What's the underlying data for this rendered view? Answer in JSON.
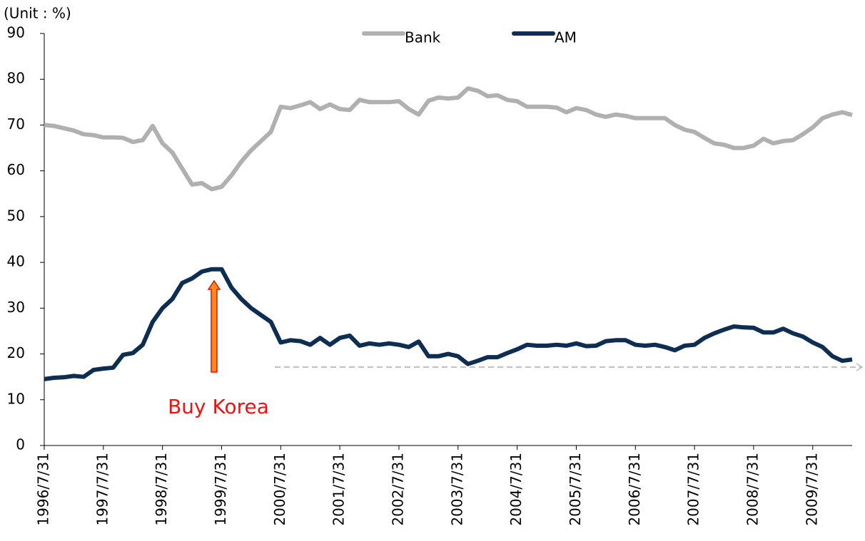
{
  "chart_data": {
    "type": "line",
    "annotations": [
      "(Unit : %)",
      "Buy Korea"
    ],
    "categories": [
      "1996/7/31",
      null,
      null,
      null,
      null,
      null,
      "1997/7/31",
      null,
      null,
      null,
      null,
      null,
      "1998/7/31",
      null,
      null,
      null,
      null,
      null,
      "1999/7/31",
      null,
      null,
      null,
      null,
      null,
      "2000/7/31",
      null,
      null,
      null,
      null,
      null,
      "2001/7/31",
      null,
      null,
      null,
      null,
      null,
      "2002/7/31",
      null,
      null,
      null,
      null,
      null,
      "2003/7/31",
      null,
      null,
      null,
      null,
      null,
      "2004/7/31",
      null,
      null,
      null,
      null,
      null,
      "2005/7/31",
      null,
      null,
      null,
      null,
      null,
      "2006/7/31",
      null,
      null,
      null,
      null,
      null,
      "2007/7/31",
      null,
      null,
      null,
      null,
      null,
      "2008/7/31",
      null,
      null,
      null,
      null,
      null,
      "2009/7/31",
      null,
      null,
      null,
      null
    ],
    "series": [
      {
        "name": "Bank",
        "color": "#b0b0b0",
        "values": [
          70,
          69.8,
          69.3,
          68.8,
          68,
          67.8,
          67.3,
          67.3,
          67.2,
          66.3,
          66.7,
          69.8,
          66,
          64,
          60.5,
          57,
          57.3,
          56,
          56.5,
          59,
          62,
          64.5,
          66.5,
          68.5,
          74,
          73.7,
          74.3,
          75,
          73.5,
          74.5,
          73.5,
          73.3,
          75.5,
          75,
          75,
          75,
          75.2,
          73.5,
          72.3,
          75.3,
          76,
          75.8,
          76,
          78,
          77.5,
          76.3,
          76.5,
          75.5,
          75.2,
          74,
          74,
          74,
          73.8,
          72.8,
          73.7,
          73.3,
          72.3,
          71.8,
          72.3,
          72,
          71.5,
          71.5,
          71.5,
          71.5,
          70,
          69,
          68.5,
          67.2,
          66,
          65.7,
          65,
          65,
          65.5,
          67,
          66,
          66.5,
          66.7,
          68,
          69.5,
          71.5,
          72.3,
          72.8,
          72.2
        ]
      },
      {
        "name": "AM",
        "color": "#0d2d52",
        "values": [
          14.5,
          14.8,
          14.9,
          15.2,
          15,
          16.5,
          16.8,
          17,
          19.8,
          20.2,
          22,
          27,
          30,
          32,
          35.5,
          36.5,
          38,
          38.5,
          38.5,
          34.5,
          32,
          30,
          28.5,
          27,
          22.5,
          23,
          22.8,
          22,
          23.5,
          22,
          23.5,
          24,
          21.8,
          22.3,
          22,
          22.3,
          22,
          21.5,
          22.7,
          19.5,
          19.5,
          20,
          19.5,
          17.8,
          18.5,
          19.3,
          19.3,
          20.2,
          21,
          22,
          21.8,
          21.8,
          22,
          21.8,
          22.3,
          21.7,
          21.8,
          22.8,
          23,
          23,
          22,
          21.8,
          22,
          21.5,
          20.8,
          21.8,
          22,
          23.5,
          24.5,
          25.3,
          26,
          25.8,
          25.7,
          24.7,
          24.7,
          25.5,
          24.5,
          23.8,
          22.5,
          21.5,
          19.5,
          18.5,
          18.8
        ]
      }
    ],
    "ylim": [
      0,
      90
    ],
    "yticks": [
      0,
      10,
      20,
      30,
      40,
      50,
      60,
      70,
      80,
      90
    ],
    "grid": false
  }
}
